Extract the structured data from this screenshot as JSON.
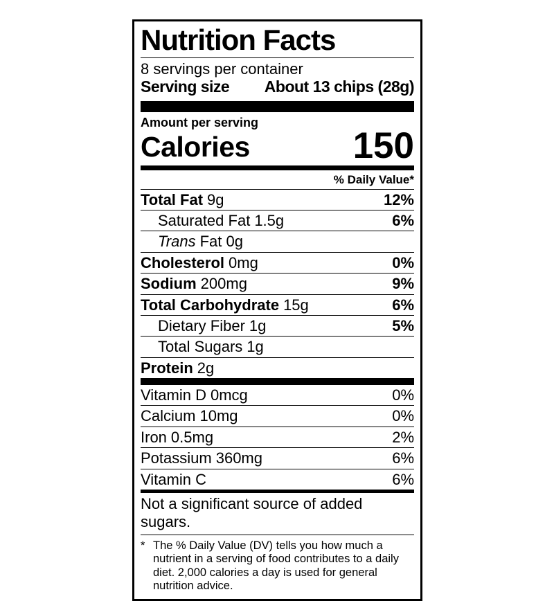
{
  "colors": {
    "ink": "#000000",
    "background": "#ffffff"
  },
  "label": {
    "title": "Nutrition Facts",
    "servings_per_container": "8 servings per container",
    "serving_size_label": "Serving size",
    "serving_size_value": "About 13 chips (28g)",
    "amount_per_serving": "Amount per serving",
    "calories_label": "Calories",
    "calories_value": "150",
    "daily_value_header": "% Daily Value*",
    "nutrients": [
      {
        "name": "Total Fat",
        "amount": "9g",
        "dv": "12%"
      },
      {
        "name": "Saturated Fat",
        "amount": "1.5g",
        "dv": "6%"
      },
      {
        "name": "Trans",
        "amount": "Fat 0g",
        "dv": ""
      },
      {
        "name": "Cholesterol",
        "amount": "0mg",
        "dv": "0%"
      },
      {
        "name": "Sodium",
        "amount": "200mg",
        "dv": "9%"
      },
      {
        "name": "Total Carbohydrate",
        "amount": "15g",
        "dv": "6%"
      },
      {
        "name": "Dietary Fiber",
        "amount": "1g",
        "dv": "5%"
      },
      {
        "name": "Total Sugars",
        "amount": "1g",
        "dv": ""
      },
      {
        "name": "Protein",
        "amount": "2g",
        "dv": ""
      }
    ],
    "micronutrients": [
      {
        "name": "Vitamin D",
        "amount": "0mcg",
        "dv": "0%"
      },
      {
        "name": "Calcium",
        "amount": "10mg",
        "dv": "0%"
      },
      {
        "name": "Iron",
        "amount": "0.5mg",
        "dv": "2%"
      },
      {
        "name": "Potassium",
        "amount": "360mg",
        "dv": "6%"
      },
      {
        "name": "Vitamin C",
        "amount": "",
        "dv": "6%"
      }
    ],
    "not_significant_note": "Not a significant source of added sugars.",
    "footnote_marker": "*",
    "footnote": "The % Daily Value (DV) tells you how much a nutrient in a serving of food contributes to a daily diet. 2,000 calories a day is used for general nutrition advice."
  }
}
